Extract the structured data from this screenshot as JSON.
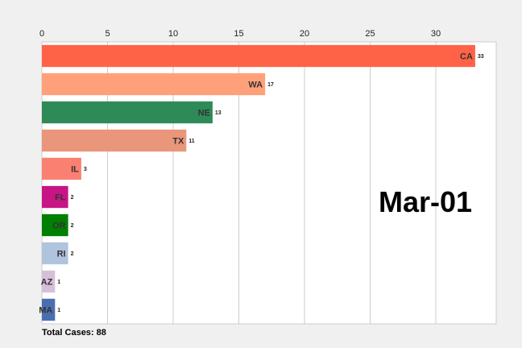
{
  "chart_data": {
    "type": "bar",
    "orientation": "horizontal",
    "categories": [
      "CA",
      "WA",
      "NE",
      "TX",
      "IL",
      "FL",
      "OR",
      "RI",
      "AZ",
      "MA"
    ],
    "values": [
      33,
      17,
      13,
      11,
      3,
      2,
      2,
      2,
      1,
      1
    ],
    "value_labels": [
      "33",
      "17",
      "13",
      "11",
      "3",
      "2",
      "2",
      "2",
      "1",
      "1"
    ],
    "colors": [
      "#ff6347",
      "#ffa07a",
      "#2e8b57",
      "#e9967a",
      "#fa8072",
      "#c71585",
      "#008000",
      "#b0c4de",
      "#d8bfd8",
      "#4a6fb0"
    ],
    "xlim": [
      0,
      34.6
    ],
    "xticks": [
      0,
      5,
      10,
      15,
      20,
      25,
      30
    ],
    "xtick_labels": [
      "0",
      "5",
      "10",
      "15",
      "20",
      "25",
      "30"
    ],
    "xaxis_position": "top",
    "grid": true,
    "title": "",
    "xlabel": "",
    "ylabel": "",
    "date_label": "Mar-01",
    "total_label": "Total Cases: 88"
  }
}
